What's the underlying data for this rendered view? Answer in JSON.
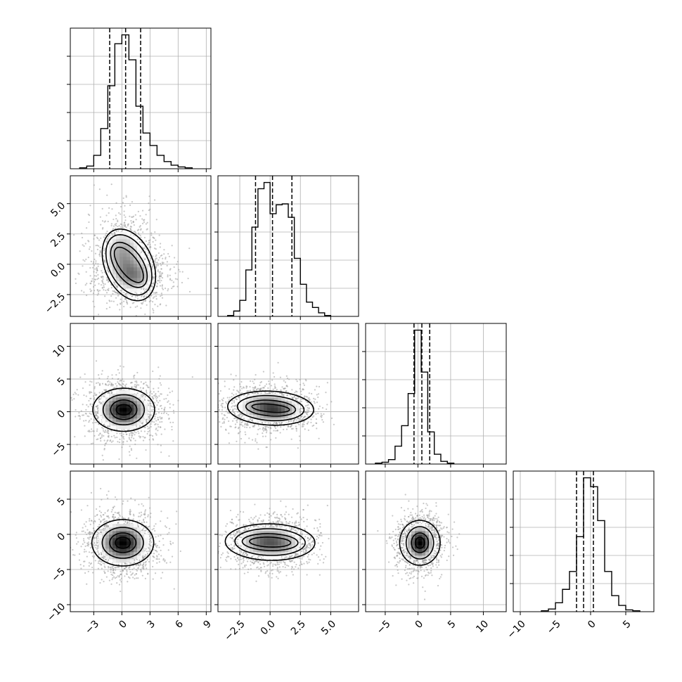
{
  "chart_data": {
    "type": "corner",
    "parameters": 4,
    "colors": {
      "line": "#000000",
      "grid": "#b0b0b0",
      "scatter": "#9a9a9a",
      "density_dark": "#000000",
      "density_light": "#ffffff"
    },
    "grid": true,
    "axes": [
      {
        "range": [
          -5.5,
          9.5
        ],
        "ticks": [
          -3,
          0,
          3,
          6,
          9
        ],
        "tick_labels": [
          "−3",
          "0",
          "3",
          "6",
          "9"
        ]
      },
      {
        "range": [
          -4.3,
          7.3
        ],
        "ticks": [
          -2.5,
          0.0,
          2.5,
          5.0
        ],
        "tick_labels": [
          "−2.5",
          "0.0",
          "2.5",
          "5.0"
        ]
      },
      {
        "range": [
          -8.0,
          13.5
        ],
        "ticks": [
          -5,
          0,
          5,
          10
        ],
        "tick_labels": [
          "−5",
          "0",
          "5",
          "10"
        ]
      },
      {
        "range": [
          -11.0,
          9.0
        ],
        "ticks": [
          -10,
          -5,
          0,
          5
        ],
        "tick_labels": [
          "−10",
          "−5",
          "0",
          "5"
        ]
      }
    ],
    "histograms": [
      {
        "bin_edges": [
          -4.5,
          -3.75,
          -3.0,
          -2.25,
          -1.5,
          -0.75,
          0.0,
          0.75,
          1.5,
          2.25,
          3.0,
          3.75,
          4.5,
          5.25,
          6.0,
          6.75,
          7.5
        ],
        "counts": [
          1,
          3,
          15,
          45,
          93,
          140,
          150,
          122,
          70,
          40,
          26,
          15,
          8,
          4,
          2,
          1
        ],
        "quantiles": [
          -1.3,
          0.4,
          2.0
        ]
      },
      {
        "bin_edges": [
          -3.5,
          -3.0,
          -2.5,
          -2.0,
          -1.5,
          -1.0,
          -0.5,
          0.0,
          0.5,
          1.0,
          1.5,
          2.0,
          2.5,
          3.0,
          3.5,
          4.0,
          4.5,
          5.0
        ],
        "counts": [
          1,
          6,
          18,
          52,
          100,
          143,
          150,
          115,
          125,
          126,
          111,
          65,
          36,
          16,
          10,
          4,
          1
        ],
        "quantiles": [
          -1.2,
          0.2,
          1.8
        ]
      },
      {
        "bin_edges": [
          -6.5,
          -5.5,
          -4.5,
          -3.5,
          -2.5,
          -1.5,
          -0.5,
          0.5,
          1.5,
          2.5,
          3.5,
          4.5,
          5.5
        ],
        "counts": [
          1,
          2,
          5,
          20,
          43,
          79,
          150,
          103,
          36,
          11,
          3,
          1
        ],
        "quantiles": [
          -0.6,
          0.6,
          1.8
        ]
      },
      {
        "bin_edges": [
          -7.0,
          -6.0,
          -5.0,
          -4.0,
          -3.0,
          -2.0,
          -1.0,
          0.0,
          1.0,
          2.0,
          3.0,
          4.0,
          5.0,
          6.0,
          7.0
        ],
        "counts": [
          1,
          3,
          10,
          25,
          45,
          84,
          150,
          140,
          102,
          45,
          18,
          7,
          2,
          1
        ],
        "quantiles": [
          -2.0,
          -1.0,
          0.4
        ]
      }
    ],
    "pairs": [
      {
        "x": 0,
        "y": 1,
        "centers": [
          [
            0.1,
            0.9
          ],
          [
            1.4,
            -1.0
          ]
        ],
        "spread": [
          [
            1.4,
            1.4
          ],
          [
            1.4,
            0.9
          ]
        ],
        "contour_levels": [
          [
            0.9,
            1.1
          ],
          [
            1.3,
            1.6
          ],
          [
            1.8,
            2.3
          ],
          [
            2.2,
            2.8
          ]
        ]
      },
      {
        "x": 0,
        "y": 2,
        "centers": [
          [
            0.2,
            0.3
          ]
        ],
        "spread": [
          [
            1.5,
            1.7
          ]
        ],
        "contour_levels": [
          [
            0.8,
            0.8
          ],
          [
            1.4,
            1.5
          ],
          [
            2.2,
            2.3
          ],
          [
            3.3,
            3.3
          ]
        ]
      },
      {
        "x": 1,
        "y": 2,
        "centers": [
          [
            -0.7,
            0.8
          ],
          [
            0.8,
            0.3
          ]
        ],
        "spread": [
          [
            1.4,
            1.5
          ],
          [
            1.2,
            1.2
          ]
        ],
        "contour_levels": [
          [
            0.8,
            0.6
          ],
          [
            1.3,
            1.2
          ],
          [
            2.0,
            1.9
          ],
          [
            2.8,
            2.6
          ]
        ]
      },
      {
        "x": 0,
        "y": 3,
        "centers": [
          [
            0.1,
            -1.2
          ]
        ],
        "spread": [
          [
            1.5,
            1.7
          ]
        ],
        "contour_levels": [
          [
            0.8,
            0.8
          ],
          [
            1.4,
            1.4
          ],
          [
            2.2,
            2.2
          ],
          [
            3.3,
            3.3
          ]
        ]
      },
      {
        "x": 1,
        "y": 3,
        "centers": [
          [
            -0.9,
            -1.0
          ],
          [
            0.9,
            -1.2
          ]
        ],
        "spread": [
          [
            1.2,
            1.4
          ],
          [
            1.2,
            1.4
          ]
        ],
        "contour_levels": [
          [
            0.8,
            0.7
          ],
          [
            1.4,
            1.2
          ],
          [
            2.0,
            1.9
          ],
          [
            2.8,
            2.6
          ]
        ]
      },
      {
        "x": 2,
        "y": 3,
        "centers": [
          [
            0.3,
            -1.2
          ]
        ],
        "spread": [
          [
            1.3,
            1.5
          ]
        ],
        "contour_levels": [
          [
            0.7,
            0.8
          ],
          [
            1.3,
            1.4
          ],
          [
            2.1,
            2.3
          ],
          [
            3.1,
            3.2
          ]
        ]
      }
    ]
  }
}
